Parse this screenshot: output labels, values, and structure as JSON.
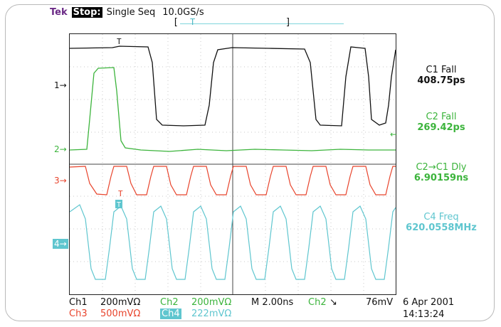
{
  "header": {
    "brand": "Tek",
    "run_state": "Stop:",
    "acq_mode": "Single Seq",
    "sample_rate": "10.0GS/s",
    "trigger_bracket_left": "[",
    "trigger_bracket_right": "]",
    "trigger_label": "T"
  },
  "channel_markers": {
    "ch1": "1→",
    "ch2": "2→",
    "ch3": "3→",
    "ch4": "4→",
    "trig_ch2": "←"
  },
  "measurements": [
    {
      "label": "C1 Fall",
      "value": "408.75ps",
      "color": "#111111"
    },
    {
      "label": "C2 Fall",
      "value": "269.42ps",
      "color": "#3cb43c"
    },
    {
      "label": "C2→C1 Dly",
      "value": "6.90159ns",
      "color": "#3cb43c"
    },
    {
      "label": "C4 Freq",
      "value": "620.0558MHz",
      "color": "#5fc6cf"
    }
  ],
  "scale_info": {
    "ch1_label": "Ch1",
    "ch1_scale": "200mVΩ",
    "ch2_label": "Ch2",
    "ch2_scale": "200mVΩ",
    "timebase": "M 2.00ns",
    "trig_source": "Ch2",
    "trig_slope": "↘",
    "trig_level": "76mV",
    "ch3_label": "Ch3",
    "ch3_scale": "500mVΩ",
    "ch4_label": "Ch4",
    "ch4_scale": "222mVΩ"
  },
  "datetime": {
    "date": "6 Apr 2001",
    "time": "14:13:24"
  },
  "colors": {
    "ch1": "#111111",
    "ch2": "#3cb43c",
    "ch3": "#e8442c",
    "ch4": "#5fc6cf",
    "brand": "#6b2a86"
  },
  "waveforms": {
    "ch1_description": "square clock, high/low alternating",
    "ch2_description": "single pulse then flat",
    "ch3_description": "fast square wave",
    "ch4_description": "fast square wave"
  }
}
